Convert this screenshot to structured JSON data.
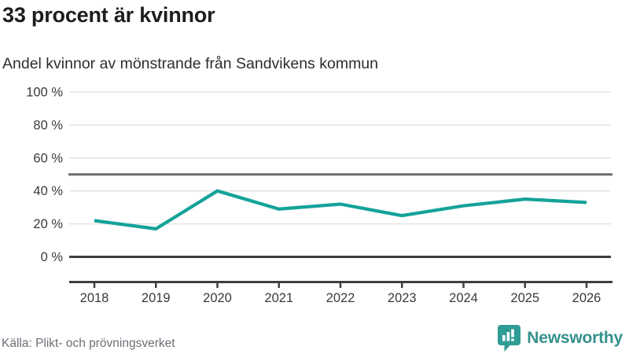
{
  "header": {
    "title": "33 procent är kvinnor",
    "subtitle": "Andel kvinnor av mönstrande från Sandvikens kommun"
  },
  "chart_data": {
    "type": "line",
    "x": [
      "2018",
      "2019",
      "2020",
      "2021",
      "2022",
      "2023",
      "2024",
      "2025",
      "2026"
    ],
    "series": [
      {
        "name": "Andel kvinnor av mönstrande från Sandvikens kommun",
        "values": [
          22,
          17,
          40,
          29,
          32,
          25,
          31,
          35,
          33
        ]
      }
    ],
    "title": "33 procent är kvinnor",
    "xlabel": "",
    "ylabel": "",
    "ylim": [
      0,
      100
    ],
    "yticks": [
      0,
      20,
      40,
      60,
      80,
      100
    ],
    "ytick_labels": [
      "0 %",
      "20 %",
      "40 %",
      "60 %",
      "80 %",
      "100 %"
    ],
    "reference_line_value": 50,
    "grid": true,
    "legend": "none",
    "unit": "%"
  },
  "footer": {
    "source": "Källa: Plikt- och prövningsverket",
    "brand": "Newsworthy"
  },
  "colors": {
    "line": "#14a29a",
    "grid": "#e4e4e4",
    "reference_line": "#6b6b6b",
    "axis": "#3f3f3f",
    "tick_label": "#3a3a3a",
    "title": "#1d1d1d",
    "source_text": "#6e6e78",
    "logo": "#2f9c95",
    "logo_text": "#35918c"
  }
}
